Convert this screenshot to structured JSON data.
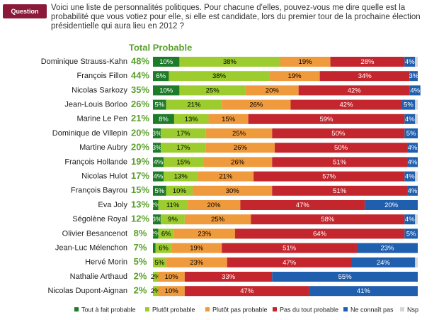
{
  "question_label": "Question",
  "question": "Voici une liste de personnalités politiques. Pour chacune d'elles, pouvez-vous me dire quelle est la probabilité que vous votiez pour elle, si elle est candidate, lors du premier tour de la prochaine élection présidentielle qui aura lieu en 2012 ?",
  "chart_data": {
    "type": "stacked-bar-horizontal",
    "total_title": "Total Probable",
    "categories": [
      "Dominique Strauss-Kahn",
      "François Fillon",
      "Nicolas Sarkozy",
      "Jean-Louis Borloo",
      "Marine Le Pen",
      "Dominique de Villepin",
      "Martine Aubry",
      "François Hollande",
      "Nicolas Hulot",
      "François Bayrou",
      "Eva Joly",
      "Ségolène Royal",
      "Olivier Besancenot",
      "Jean-Luc Mélenchon",
      "Hervé Morin",
      "Nathalie Arthaud",
      "Nicolas Dupont-Aignan"
    ],
    "total_probable": [
      "48%",
      "44%",
      "35%",
      "26%",
      "21%",
      "20%",
      "20%",
      "19%",
      "17%",
      "15%",
      "13%",
      "12%",
      "8%",
      "7%",
      "5%",
      "2%",
      "2%"
    ],
    "xlim": [
      0,
      100
    ],
    "series": [
      {
        "name": "Tout à fait probable",
        "color": "#1e7b2a",
        "label_color": "#ffffff",
        "values": [
          10,
          6,
          10,
          5,
          8,
          3,
          3,
          4,
          4,
          5,
          2,
          3,
          2,
          1,
          0,
          0,
          0
        ],
        "value_labels": [
          "10%",
          "6%",
          "10%",
          "5%",
          "8%",
          "3%",
          "3%",
          "4%",
          "4%",
          "5%",
          "2%",
          "3%",
          "2%",
          null,
          null,
          null,
          null
        ]
      },
      {
        "name": "Plutôt probable",
        "color": "#9ccc2e",
        "label_color": "#000000",
        "values": [
          38,
          38,
          25,
          21,
          13,
          17,
          17,
          15,
          13,
          10,
          11,
          9,
          6,
          6,
          5,
          2,
          2
        ],
        "value_labels": [
          "38%",
          "38%",
          "25%",
          "21%",
          "13%",
          "17%",
          "17%",
          "15%",
          "13%",
          "10%",
          "11%",
          "9%",
          "6%",
          "6%",
          "5%",
          "2%",
          "2%"
        ]
      },
      {
        "name": "Plutôt pas probable",
        "color": "#ef9a3c",
        "label_color": "#000000",
        "values": [
          19,
          19,
          20,
          26,
          15,
          25,
          26,
          26,
          21,
          30,
          20,
          25,
          23,
          19,
          23,
          10,
          10
        ],
        "value_labels": [
          "19%",
          "19%",
          "20%",
          "26%",
          "15%",
          "25%",
          "26%",
          "26%",
          "21%",
          "30%",
          "20%",
          "25%",
          "23%",
          "19%",
          "23%",
          "10%",
          "10%"
        ]
      },
      {
        "name": "Pas du tout probable",
        "color": "#c4262e",
        "label_color": "#ffffff",
        "values": [
          28,
          34,
          42,
          42,
          59,
          50,
          50,
          51,
          57,
          51,
          47,
          58,
          64,
          51,
          47,
          33,
          47
        ],
        "value_labels": [
          "28%",
          "34%",
          "42%",
          "42%",
          "59%",
          "50%",
          "50%",
          "51%",
          "57%",
          "51%",
          "47%",
          "58%",
          "64%",
          "51%",
          "47%",
          "33%",
          "47%"
        ]
      },
      {
        "name": "Ne connaît pas",
        "color": "#1f5fae",
        "label_color": "#ffffff",
        "values": [
          4,
          3,
          4,
          5,
          4,
          5,
          4,
          4,
          4,
          4,
          20,
          4,
          5,
          23,
          24,
          55,
          41
        ],
        "value_labels": [
          "4%",
          "3%",
          "4%",
          "5%",
          "4%",
          "5%",
          "4%",
          "4%",
          "4%",
          "4%",
          "20%",
          "4%",
          "5%",
          "23%",
          "24%",
          "55%",
          "41%"
        ]
      },
      {
        "name": "Nsp",
        "color": "#d6d6d6",
        "label_color": "#000000",
        "values": [
          1,
          0,
          0,
          1,
          1,
          0,
          0,
          0,
          1,
          0,
          0,
          1,
          0,
          0,
          1,
          0,
          0
        ]
      }
    ]
  }
}
